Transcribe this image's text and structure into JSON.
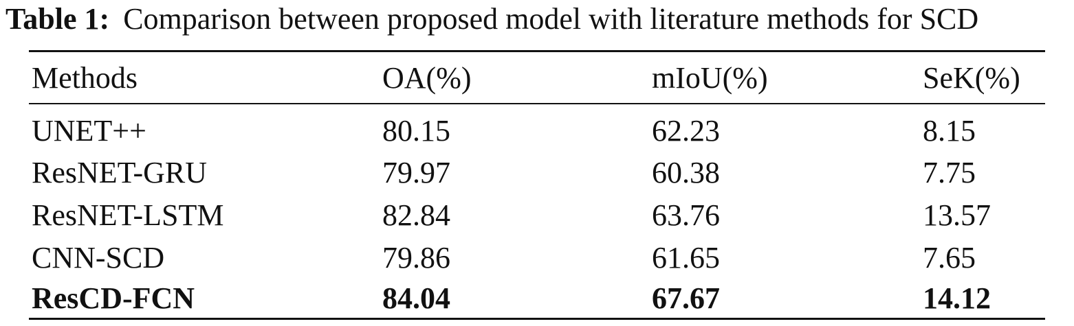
{
  "caption": {
    "label": "Table 1:",
    "text": "Comparison between proposed model with literature methods for SCD"
  },
  "table": {
    "headers": [
      "Methods",
      "OA(%)",
      "mIoU(%)",
      "SeK(%)"
    ],
    "rows": [
      [
        "UNET++",
        "80.15",
        "62.23",
        "8.15"
      ],
      [
        "ResNET-GRU",
        "79.97",
        "60.38",
        "7.75"
      ],
      [
        "ResNET-LSTM",
        "82.84",
        "63.76",
        "13.57"
      ],
      [
        "CNN-SCD",
        "79.86",
        "61.65",
        "7.65"
      ],
      [
        "ResCD-FCN",
        "84.04",
        "67.67",
        "14.12"
      ]
    ]
  }
}
